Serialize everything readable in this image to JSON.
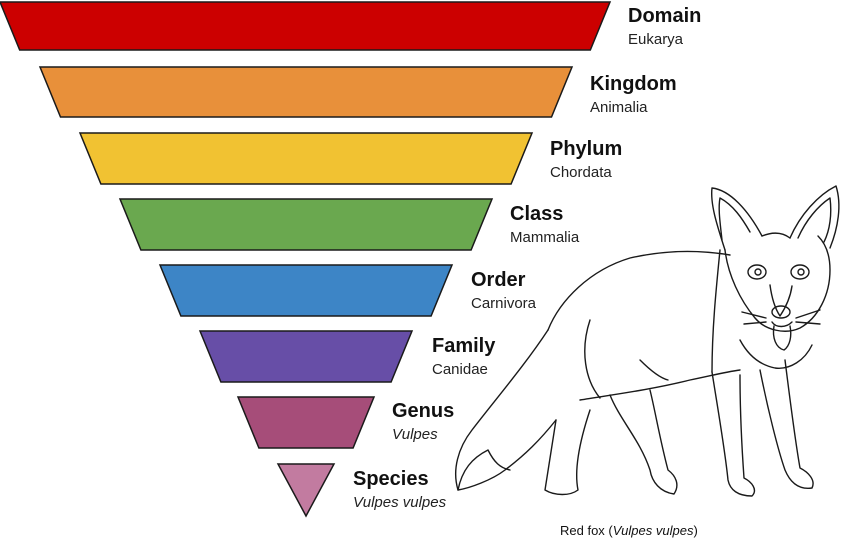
{
  "levels": [
    {
      "rank": "Domain",
      "value": "Eukarya",
      "italic": false,
      "color": "#cc0000"
    },
    {
      "rank": "Kingdom",
      "value": "Animalia",
      "italic": false,
      "color": "#e8903a"
    },
    {
      "rank": "Phylum",
      "value": "Chordata",
      "italic": false,
      "color": "#f1c232"
    },
    {
      "rank": "Class",
      "value": "Mammalia",
      "italic": false,
      "color": "#6aa84f"
    },
    {
      "rank": "Order",
      "value": "Carnivora",
      "italic": false,
      "color": "#3d85c6"
    },
    {
      "rank": "Family",
      "value": "Canidae",
      "italic": false,
      "color": "#674ea7"
    },
    {
      "rank": "Genus",
      "value": "Vulpes",
      "italic": true,
      "color": "#a64d79"
    },
    {
      "rank": "Species",
      "value": "Vulpes vulpes",
      "italic": true,
      "color": "#c27ba0"
    }
  ],
  "caption": {
    "prefix": "Red fox (",
    "scientific": "Vulpes vulpes",
    "suffix": ")"
  },
  "illustration": {
    "icon": "red-fox-line-drawing-icon"
  }
}
